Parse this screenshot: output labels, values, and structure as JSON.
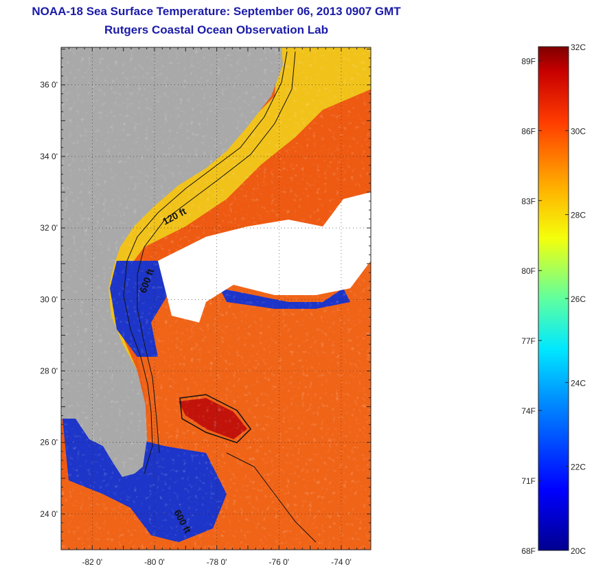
{
  "title": "NOAA-18 Sea Surface Temperature:  September 06, 2013 0907 GMT",
  "subtitle": "Rutgers Coastal Ocean Observation Lab",
  "map": {
    "lat_labels": [
      {
        "value": 36,
        "label": "36 0'"
      },
      {
        "value": 34,
        "label": "34 0'"
      },
      {
        "value": 32,
        "label": "32 0'"
      },
      {
        "value": 30,
        "label": "30 0'"
      },
      {
        "value": 28,
        "label": "28 0'"
      },
      {
        "value": 26,
        "label": "26 0'"
      },
      {
        "value": 24,
        "label": "24 0'"
      }
    ],
    "lon_labels": [
      {
        "value": -82,
        "label": "-82 0'"
      },
      {
        "value": -80,
        "label": "-80 0'"
      },
      {
        "value": -78,
        "label": "-78 0'"
      },
      {
        "value": -76,
        "label": "-76 0'"
      },
      {
        "value": -74,
        "label": "-74 0'"
      }
    ],
    "lat_range": [
      23,
      37.05
    ],
    "lon_range": [
      -83,
      -73.05
    ],
    "contour_labels": [
      "120 ft",
      "600 ft",
      "600 ft"
    ],
    "colors": {
      "land": "#a9a9a9",
      "cloud": "#ffffff",
      "warm": "#ee5a12",
      "cool": "#f1c21a",
      "cold": "#1d35c8"
    }
  },
  "colorbar": {
    "fahrenheit_labels": [
      "89F",
      "86F",
      "83F",
      "80F",
      "77F",
      "74F",
      "71F",
      "68F"
    ],
    "celsius_labels": [
      "32C",
      "30C",
      "28C",
      "26C",
      "24C",
      "22C",
      "20C"
    ],
    "range_c": [
      20,
      32
    ]
  }
}
